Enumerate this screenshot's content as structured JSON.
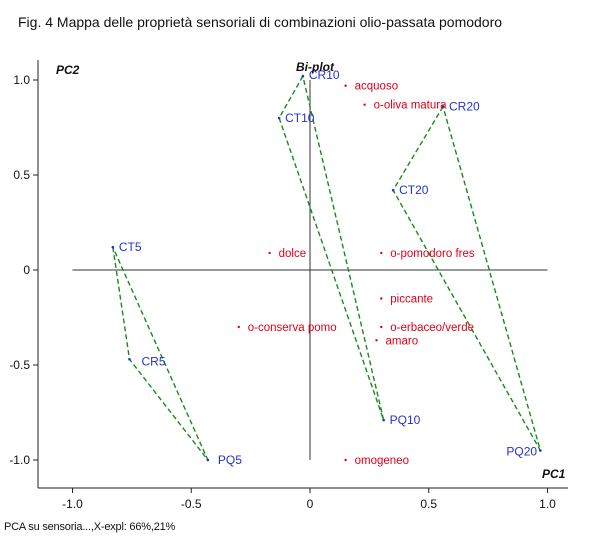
{
  "figure": {
    "title": "Fig. 4 Mappa delle proprietà sensoriali di combinazioni olio-passata pomodoro",
    "footer": "PCA su sensoria...,X-expl: 66%,21%"
  },
  "chart_data": {
    "type": "scatter",
    "title": "Bi-plot",
    "xlabel": "PC1",
    "ylabel": "PC2",
    "xlim": [
      -1.1,
      1.1
    ],
    "ylim": [
      -1.1,
      1.1
    ],
    "x_ticks": [
      "-1.0",
      "-0.5",
      "0",
      "0.5",
      "1.0"
    ],
    "y_ticks": [
      "1.0",
      "0.5",
      "0",
      "-0.5",
      "-1.0"
    ],
    "grid": false,
    "colors": {
      "samples": "#2233cc",
      "variables": "#e0001a",
      "groups": "#1a8a1a"
    },
    "samples": [
      {
        "label": "CT5",
        "x": -0.83,
        "y": 0.12
      },
      {
        "label": "CR5",
        "x": -0.76,
        "y": -0.47
      },
      {
        "label": "PQ5",
        "x": -0.43,
        "y": -1.0
      },
      {
        "label": "CR10",
        "x": -0.03,
        "y": 1.02
      },
      {
        "label": "CT10",
        "x": -0.13,
        "y": 0.8
      },
      {
        "label": "PQ10",
        "x": 0.31,
        "y": -0.79
      },
      {
        "label": "CR20",
        "x": 0.56,
        "y": 0.86
      },
      {
        "label": "CT20",
        "x": 0.35,
        "y": 0.42
      },
      {
        "label": "PQ20",
        "x": 0.97,
        "y": -0.95
      }
    ],
    "variables": [
      {
        "label": "acquoso",
        "x": 0.15,
        "y": 0.97
      },
      {
        "label": "o-oliva matura",
        "x": 0.23,
        "y": 0.87
      },
      {
        "label": "dolce",
        "x": -0.17,
        "y": 0.09
      },
      {
        "label": "o-pomodoro fres",
        "x": 0.3,
        "y": 0.09
      },
      {
        "label": "piccante",
        "x": 0.3,
        "y": -0.15
      },
      {
        "label": "o-conserva pomo",
        "x": -0.3,
        "y": -0.3
      },
      {
        "label": "o-erbaceo/verde",
        "x": 0.3,
        "y": -0.3
      },
      {
        "label": "amaro",
        "x": 0.28,
        "y": -0.37
      },
      {
        "label": "omogeneo",
        "x": 0.15,
        "y": -1.0
      }
    ],
    "groups": [
      {
        "members": [
          "CT5",
          "CR5",
          "PQ5"
        ]
      },
      {
        "members": [
          "CR10",
          "CT10",
          "PQ10"
        ]
      },
      {
        "members": [
          "CR20",
          "CT20",
          "PQ20"
        ]
      }
    ]
  }
}
